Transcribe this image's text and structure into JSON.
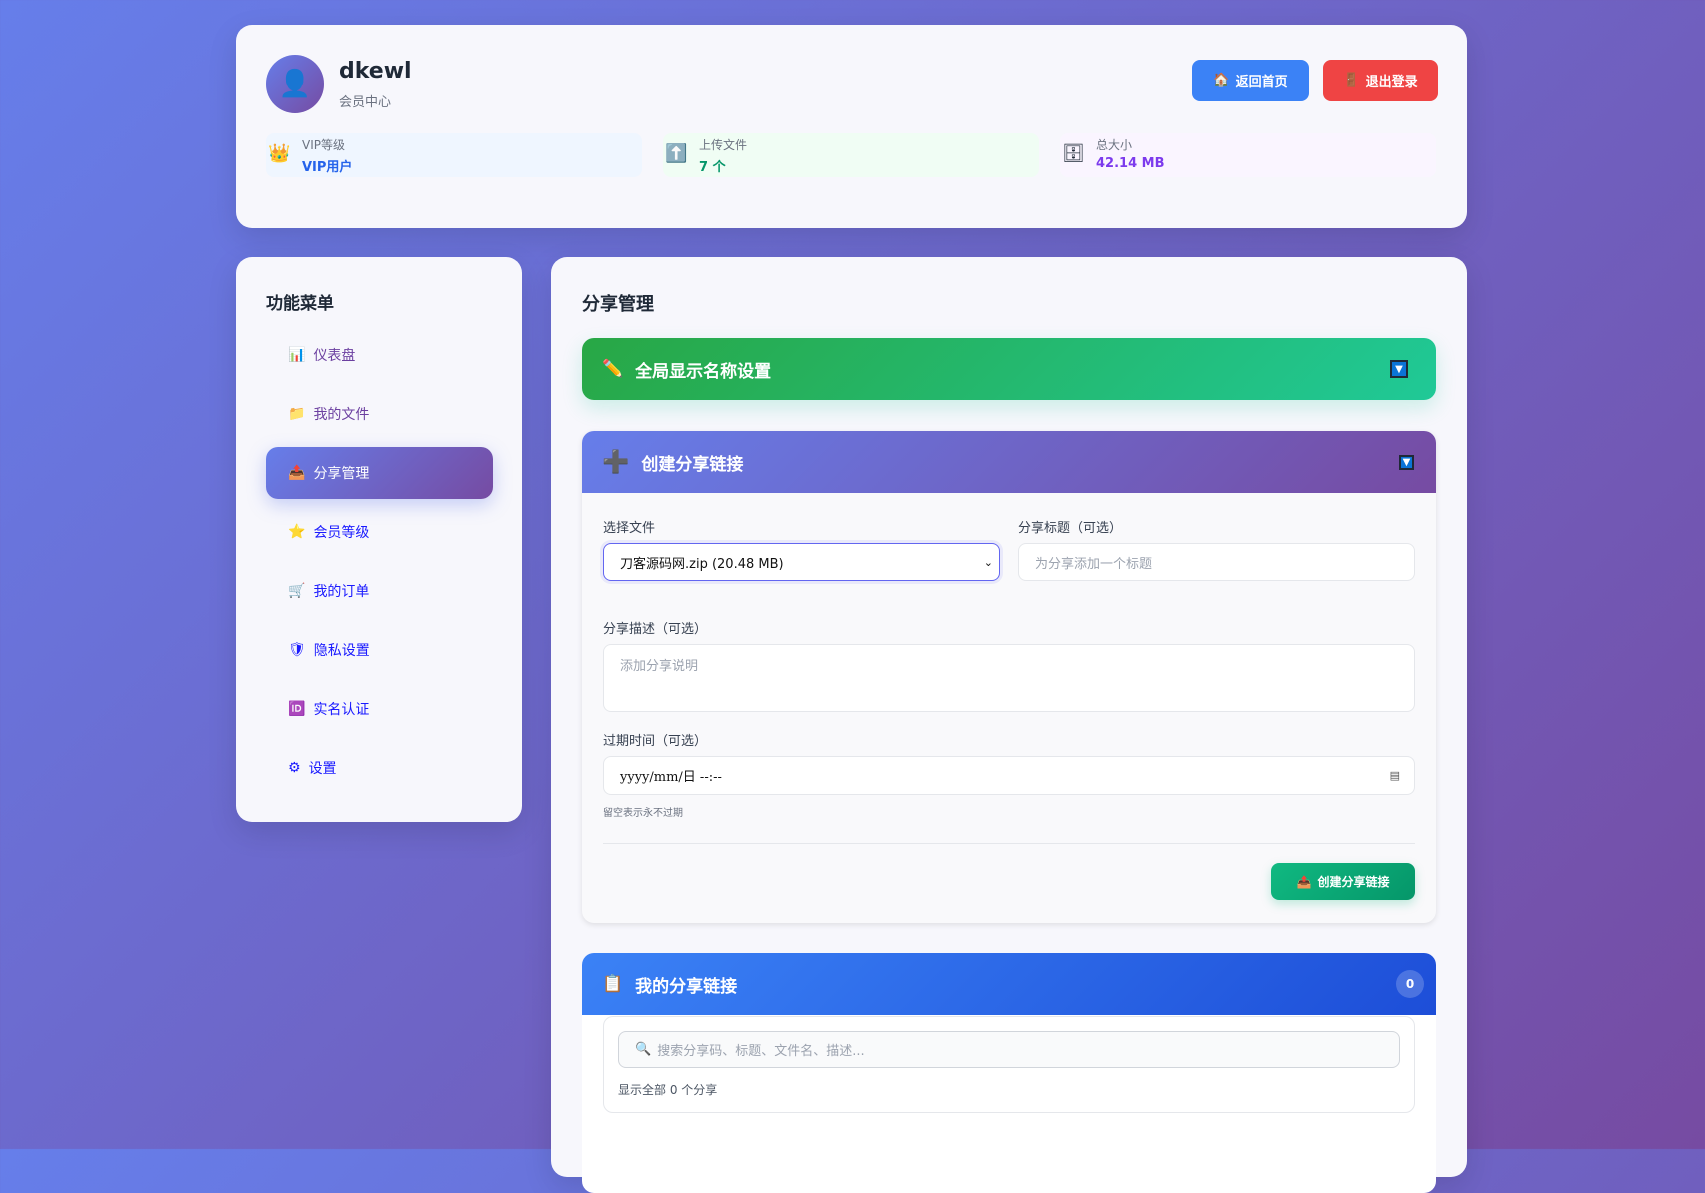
{
  "user": {
    "name": "dkewl",
    "subtitle": "会员中心",
    "avatar_icon": "person-icon"
  },
  "header_buttons": {
    "home": "返回首页",
    "logout": "退出登录"
  },
  "stats": [
    {
      "label": "VIP等级",
      "value": "VIP用户",
      "icon": "crown-icon",
      "color": "#2563eb"
    },
    {
      "label": "上传文件",
      "value": "7 个",
      "icon": "upload-icon",
      "color": "#059669"
    },
    {
      "label": "总大小",
      "value": "42.14 MB",
      "icon": "cabinet-icon",
      "color": "#7c3aed"
    }
  ],
  "sidebar": {
    "title": "功能菜单",
    "items": [
      {
        "label": "仪表盘",
        "icon": "📊"
      },
      {
        "label": "我的文件",
        "icon": "📁"
      },
      {
        "label": "分享管理",
        "icon": "📤",
        "active": true
      },
      {
        "label": "会员等级",
        "icon": "⭐"
      },
      {
        "label": "我的订单",
        "icon": "🛒"
      },
      {
        "label": "隐私设置",
        "icon": "🛡"
      },
      {
        "label": "实名认证",
        "icon": "🆔"
      },
      {
        "label": "设置",
        "icon": "⚙"
      }
    ]
  },
  "main": {
    "title": "分享管理",
    "global_name": {
      "title": "全局显示名称设置"
    },
    "create": {
      "title": "创建分享链接",
      "file_label": "选择文件",
      "file_value": "刀客源码网.zip (20.48 MB)",
      "title_label": "分享标题（可选）",
      "title_placeholder": "为分享添加一个标题",
      "desc_label": "分享描述（可选）",
      "desc_placeholder": "添加分享说明",
      "expire_label": "过期时间（可选）",
      "expire_value": "yyyy/mm/日 --:--",
      "expire_hint": "留空表示永不过期",
      "submit": "创建分享链接"
    },
    "my_shares": {
      "title": "我的分享链接",
      "count": "0",
      "search_placeholder": "搜索分享码、标题、文件名、描述...",
      "summary": "显示全部 0 个分享"
    }
  }
}
